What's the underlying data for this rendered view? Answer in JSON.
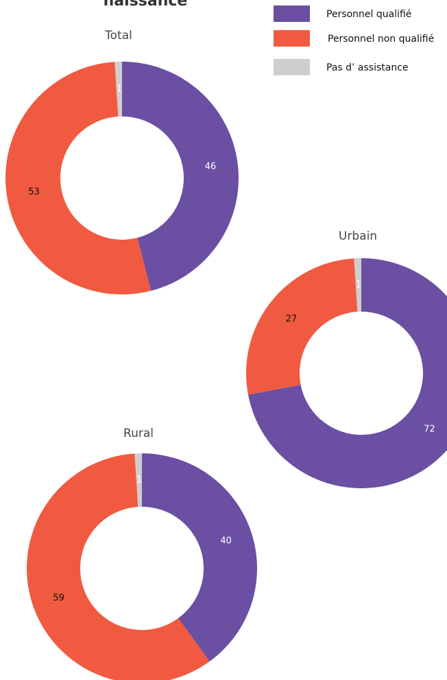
{
  "title": "naissance",
  "chart_data": [
    {
      "type": "pie",
      "title": "Total",
      "categories": [
        "Personnel qualifié",
        "Personnel non qualifié",
        "Pas d’ assistance"
      ],
      "values": [
        46,
        53,
        1
      ],
      "colors": [
        "#6a4fa3",
        "#f05a40",
        "#cfcdd0"
      ]
    },
    {
      "type": "pie",
      "title": "Urbain",
      "categories": [
        "Personnel qualifié",
        "Personnel non qualifié",
        "Pas d’ assistance"
      ],
      "values": [
        72,
        27,
        1
      ],
      "colors": [
        "#6a4fa3",
        "#f05a40",
        "#cfcdd0"
      ]
    },
    {
      "type": "pie",
      "title": "Rural",
      "categories": [
        "Personnel qualifié",
        "Personnel non qualifié",
        "Pas d’ assistance"
      ],
      "values": [
        40,
        59,
        1
      ],
      "colors": [
        "#6a4fa3",
        "#f05a40",
        "#cfcdd0"
      ]
    }
  ]
}
